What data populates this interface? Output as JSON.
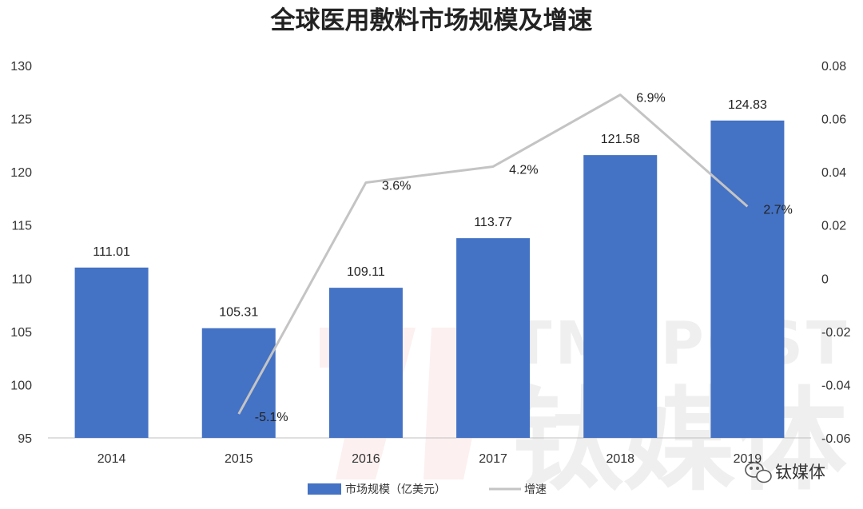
{
  "chart_data": {
    "type": "bar",
    "title": "全球医用敷料市场规模及增速",
    "categories": [
      "2014",
      "2015",
      "2016",
      "2017",
      "2018",
      "2019"
    ],
    "series": [
      {
        "name": "市场规模（亿美元）",
        "type": "bar",
        "axis": "left",
        "color": "#4472c4",
        "values": [
          111.01,
          105.31,
          109.11,
          113.77,
          121.58,
          124.83
        ],
        "labels": [
          "111.01",
          "105.31",
          "109.11",
          "113.77",
          "121.58",
          "124.83"
        ]
      },
      {
        "name": "增速",
        "type": "line",
        "axis": "right",
        "color": "#c4c4c4",
        "x": [
          "2015",
          "2016",
          "2017",
          "2018",
          "2019"
        ],
        "values": [
          -0.051,
          0.036,
          0.042,
          0.069,
          0.027
        ],
        "labels": [
          "-5.1%",
          "3.6%",
          "4.2%",
          "6.9%",
          "2.7%"
        ]
      }
    ],
    "y_left": {
      "ylim": [
        95,
        130
      ],
      "ticks": [
        "95",
        "100",
        "105",
        "110",
        "115",
        "120",
        "125",
        "130"
      ]
    },
    "y_right": {
      "ylim": [
        -0.06,
        0.08
      ],
      "ticks": [
        "-0.06",
        "-0.04",
        "-0.02",
        "0",
        "0.02",
        "0.04",
        "0.06",
        "0.08"
      ]
    },
    "grid": false,
    "legend": "bottom"
  },
  "watermark": {
    "latin": "TMTPOST",
    "cjk": "钛媒体"
  },
  "source_badge": {
    "text": "钛媒体",
    "icon": "wechat-icon"
  }
}
